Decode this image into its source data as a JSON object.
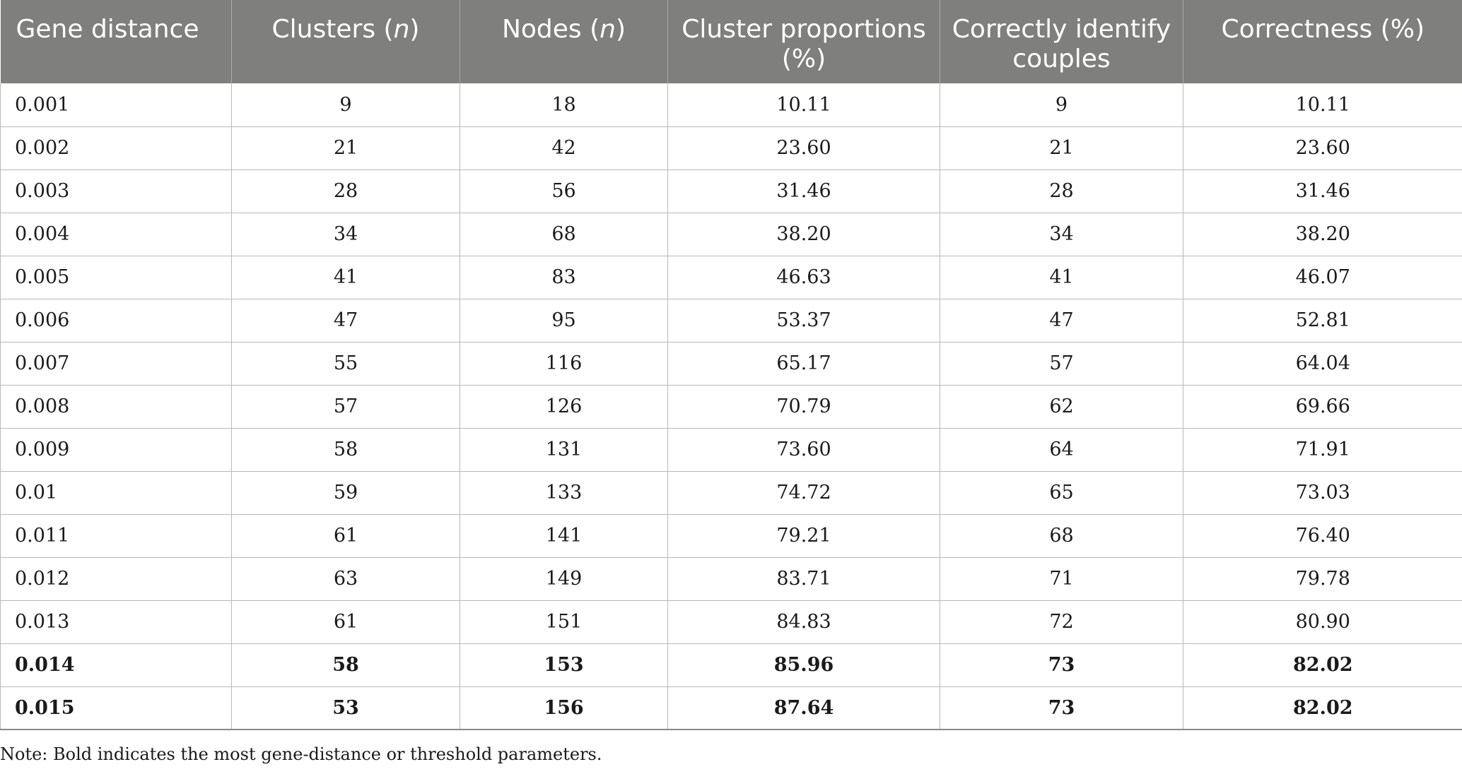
{
  "table": {
    "headers": [
      {
        "text": "Gene distance",
        "unit": ""
      },
      {
        "text": "Clusters (",
        "italic": "n",
        "close": ")"
      },
      {
        "text": "Nodes (",
        "italic": "n",
        "close": ")"
      },
      {
        "line1": "Cluster proportions",
        "line2": "(%)"
      },
      {
        "line1": "Correctly identify",
        "line2": "couples"
      },
      {
        "text": "Correctness (%)"
      }
    ],
    "rows": [
      {
        "cells": [
          "0.001",
          "9",
          "18",
          "10.11",
          "9",
          "10.11"
        ],
        "bold": false
      },
      {
        "cells": [
          "0.002",
          "21",
          "42",
          "23.60",
          "21",
          "23.60"
        ],
        "bold": false
      },
      {
        "cells": [
          "0.003",
          "28",
          "56",
          "31.46",
          "28",
          "31.46"
        ],
        "bold": false
      },
      {
        "cells": [
          "0.004",
          "34",
          "68",
          "38.20",
          "34",
          "38.20"
        ],
        "bold": false
      },
      {
        "cells": [
          "0.005",
          "41",
          "83",
          "46.63",
          "41",
          "46.07"
        ],
        "bold": false
      },
      {
        "cells": [
          "0.006",
          "47",
          "95",
          "53.37",
          "47",
          "52.81"
        ],
        "bold": false
      },
      {
        "cells": [
          "0.007",
          "55",
          "116",
          "65.17",
          "57",
          "64.04"
        ],
        "bold": false
      },
      {
        "cells": [
          "0.008",
          "57",
          "126",
          "70.79",
          "62",
          "69.66"
        ],
        "bold": false
      },
      {
        "cells": [
          "0.009",
          "58",
          "131",
          "73.60",
          "64",
          "71.91"
        ],
        "bold": false
      },
      {
        "cells": [
          "0.01",
          "59",
          "133",
          "74.72",
          "65",
          "73.03"
        ],
        "bold": false
      },
      {
        "cells": [
          "0.011",
          "61",
          "141",
          "79.21",
          "68",
          "76.40"
        ],
        "bold": false
      },
      {
        "cells": [
          "0.012",
          "63",
          "149",
          "83.71",
          "71",
          "79.78"
        ],
        "bold": false
      },
      {
        "cells": [
          "0.013",
          "61",
          "151",
          "84.83",
          "72",
          "80.90"
        ],
        "bold": false
      },
      {
        "cells": [
          "0.014",
          "58",
          "153",
          "85.96",
          "73",
          "82.02"
        ],
        "bold": true
      },
      {
        "cells": [
          "0.015",
          "53",
          "156",
          "87.64",
          "73",
          "82.02"
        ],
        "bold": true
      }
    ]
  },
  "note": "Note: Bold indicates the most gene-distance or threshold parameters."
}
